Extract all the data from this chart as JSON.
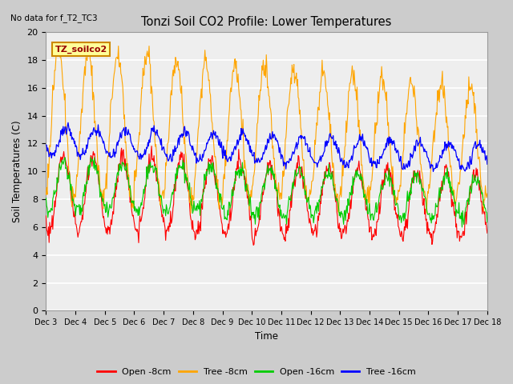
{
  "title": "Tonzi Soil CO2 Profile: Lower Temperatures",
  "subtitle": "No data for f_T2_TC3",
  "ylabel": "Soil Temperatures (C)",
  "xlabel": "Time",
  "legend_label": "TZ_soilco2",
  "ylim": [
    0,
    20
  ],
  "yticks": [
    0,
    2,
    4,
    6,
    8,
    10,
    12,
    14,
    16,
    18,
    20
  ],
  "x_tick_labels": [
    "Dec 3",
    "Dec 4",
    "Dec 5",
    "Dec 6",
    "Dec 7",
    "Dec 8",
    "Dec 9",
    "Dec 10",
    "Dec 11",
    "Dec 12",
    "Dec 13",
    "Dec 14",
    "Dec 15",
    "Dec 16",
    "Dec 17",
    "Dec 18"
  ],
  "colors": {
    "open8": "#ff0000",
    "tree8": "#ffa500",
    "open16": "#00cc00",
    "tree16": "#0000ff"
  },
  "legend_items": [
    "Open -8cm",
    "Tree -8cm",
    "Open -16cm",
    "Tree -16cm"
  ]
}
